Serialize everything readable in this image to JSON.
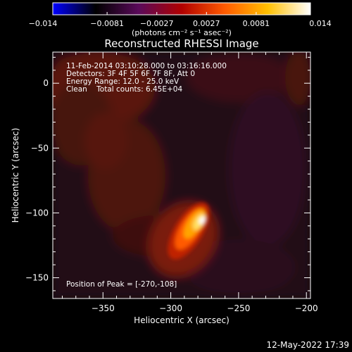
{
  "colorbar": {
    "colors": [
      "#0000ff",
      "#000000",
      "#5a0a5a",
      "#b00000",
      "#ff5a00",
      "#ffc000",
      "#ffffff"
    ],
    "range": [
      -0.014,
      0.014
    ],
    "ticks": [
      "-0.014",
      "-0.0081",
      "-0.0027",
      "0.0027",
      "0.0081",
      "0.014"
    ],
    "unit_label": "(photons cm⁻² s⁻¹ asec⁻²)"
  },
  "chart_data": {
    "type": "heatmap",
    "title": "Reconstructed RHESSI Image",
    "xlabel": "Heliocentric X (arcsec)",
    "ylabel": "Heliocentric Y (arcsec)",
    "xlim": [
      -387,
      -197
    ],
    "ylim": [
      -166,
      24
    ],
    "xticks": [
      {
        "value": -350,
        "label": "-350"
      },
      {
        "value": -300,
        "label": "-300"
      },
      {
        "value": -250,
        "label": "-250"
      },
      {
        "value": -200,
        "label": "-200"
      }
    ],
    "yticks": [
      {
        "value": 0,
        "label": "0"
      },
      {
        "value": -50,
        "label": "-50"
      },
      {
        "value": -100,
        "label": "-100"
      },
      {
        "value": -150,
        "label": "-150"
      }
    ],
    "peak": {
      "x": -270,
      "y": -108
    },
    "annotations": [
      "11-Feb-2014 03:10:28.000 to 03:16:16.000",
      "Detectors: 3F 4F 5F 6F 7F 8F, Att 0",
      "Energy Range: 12.0 - 25.0 keV",
      "Clean    Total counts: 6.45E+04"
    ],
    "peak_label": "Position of Peak = [-270,-108]"
  },
  "footer": {
    "timestamp": "12-May-2022 17:39"
  }
}
